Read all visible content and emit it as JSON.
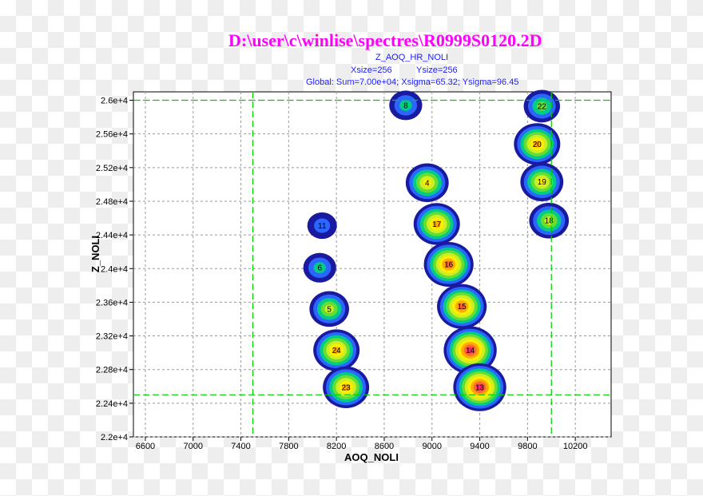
{
  "header": {
    "file_path": "D:\\user\\c\\winlise\\spectres\\R0999S0120.2D",
    "histogram_name": "Z_AOQ_HR_NOLI",
    "xsize_text": "Xsize=256",
    "ysize_text": "Ysize=256",
    "global_stats": "Global: Sum=7.00e+04;  Xsigma=65.32;  Ysigma=96.45"
  },
  "colors": {
    "title": "#ff00ff",
    "subtitle": "#1a1aff",
    "cut_lines": "#00cc00",
    "grid": "#999999",
    "frame": "#000000",
    "levels": [
      "#1a1aa0",
      "#2a66ff",
      "#00cc88",
      "#66dd33",
      "#ccee22",
      "#ffee00",
      "#ffaa00",
      "#ff6633",
      "#ff2277"
    ]
  },
  "chart_data": {
    "type": "heatmap",
    "title": "Z_AOQ_HR_NOLI",
    "xlabel": "AOQ_NOLI",
    "ylabel": "Z_NOLI",
    "xlim": [
      6500,
      10500
    ],
    "ylim": [
      22000,
      26100
    ],
    "x_ticks": [
      6600,
      7000,
      7400,
      7800,
      8200,
      8600,
      9000,
      9400,
      9800,
      10200
    ],
    "x_tick_labels": [
      "6600",
      "7000",
      "7400",
      "7800",
      "8200",
      "8600",
      "9000",
      "9400",
      "9800",
      "10200"
    ],
    "y_ticks": [
      22000,
      22400,
      22800,
      23200,
      23600,
      24000,
      24400,
      24800,
      25200,
      25600,
      26000
    ],
    "y_tick_labels": [
      "2.2e+4",
      "2.24e+4",
      "2.28e+4",
      "2.32e+4",
      "2.36e+4",
      "2.4e+4",
      "2.44e+4",
      "2.48e+4",
      "2.52e+4",
      "2.56e+4",
      "2.6e+4"
    ],
    "grid": true,
    "cuts": {
      "x": [
        7500,
        10000
      ],
      "y": [
        22500,
        26000
      ]
    },
    "peaks": [
      {
        "label": "8",
        "x": 8780,
        "y": 25940,
        "intensity": 2
      },
      {
        "label": "22",
        "x": 9920,
        "y": 25930,
        "intensity": 3
      },
      {
        "label": "20",
        "x": 9880,
        "y": 25480,
        "intensity": 6
      },
      {
        "label": "19",
        "x": 9920,
        "y": 25030,
        "intensity": 5
      },
      {
        "label": "18",
        "x": 9980,
        "y": 24570,
        "intensity": 4
      },
      {
        "label": "4",
        "x": 8960,
        "y": 25020,
        "intensity": 5
      },
      {
        "label": "17",
        "x": 9040,
        "y": 24530,
        "intensity": 6
      },
      {
        "label": "16",
        "x": 9140,
        "y": 24050,
        "intensity": 7
      },
      {
        "label": "15",
        "x": 9250,
        "y": 23550,
        "intensity": 7
      },
      {
        "label": "14",
        "x": 9320,
        "y": 23030,
        "intensity": 8
      },
      {
        "label": "13",
        "x": 9400,
        "y": 22590,
        "intensity": 8
      },
      {
        "label": "11",
        "x": 8080,
        "y": 24510,
        "intensity": 1
      },
      {
        "label": "6",
        "x": 8060,
        "y": 24010,
        "intensity": 2
      },
      {
        "label": "5",
        "x": 8140,
        "y": 23520,
        "intensity": 4
      },
      {
        "label": "24",
        "x": 8200,
        "y": 23030,
        "intensity": 6
      },
      {
        "label": "23",
        "x": 8280,
        "y": 22590,
        "intensity": 6
      }
    ]
  }
}
